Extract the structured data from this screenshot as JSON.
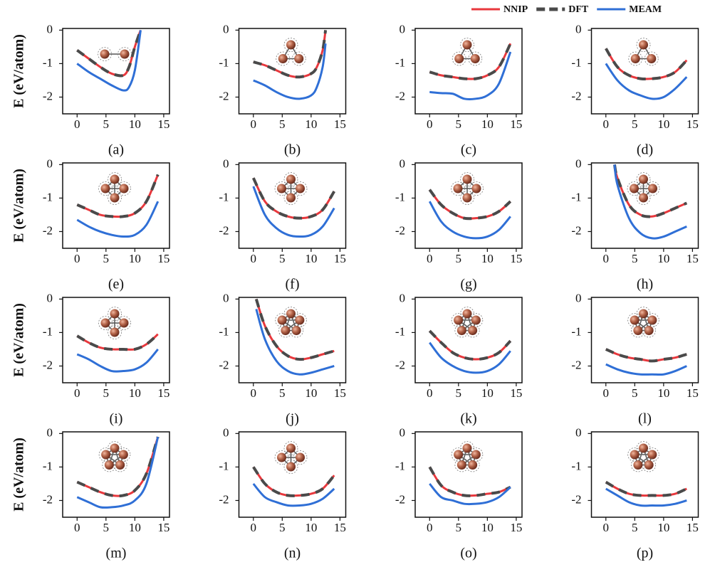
{
  "chart_data": [
    {
      "type": "line",
      "xlabel": "(a)",
      "ylabel": "E (eV/atom)",
      "x": [
        0,
        2,
        4,
        6,
        8,
        9,
        10,
        11
      ],
      "xlim": [
        -2.5,
        16
      ],
      "ylim": [
        -2.5,
        0.05
      ],
      "xticks": [
        0,
        5,
        10,
        15
      ],
      "yticks": [
        0,
        -1,
        -2
      ],
      "series": [
        {
          "color": "#e8383d",
          "values": [
            -0.6,
            -0.85,
            -1.1,
            -1.3,
            -1.35,
            -1.1,
            -0.5,
            0
          ]
        },
        {
          "color": "#4a4a4a",
          "dashed": true,
          "values": [
            -0.6,
            -0.85,
            -1.1,
            -1.3,
            -1.35,
            -1.1,
            -0.5,
            0
          ]
        },
        {
          "color": "#2f6fd6",
          "values": [
            -1.0,
            -1.25,
            -1.45,
            -1.65,
            -1.8,
            -1.7,
            -1.2,
            0
          ]
        }
      ]
    },
    {
      "type": "line",
      "xlabel": "(b)",
      "x": [
        0,
        2,
        4,
        6,
        8,
        10,
        11,
        12,
        12.5
      ],
      "xlim": [
        -2.5,
        16
      ],
      "ylim": [
        -2.5,
        0.05
      ],
      "xticks": [
        0,
        5,
        10,
        15
      ],
      "yticks": [
        0,
        -1,
        -2
      ],
      "series": [
        {
          "color": "#e8383d",
          "values": [
            -0.95,
            -1.05,
            -1.2,
            -1.35,
            -1.4,
            -1.3,
            -1.1,
            -0.6,
            0
          ]
        },
        {
          "color": "#4a4a4a",
          "dashed": true,
          "values": [
            -0.95,
            -1.05,
            -1.2,
            -1.35,
            -1.4,
            -1.3,
            -1.1,
            -0.6,
            0
          ]
        },
        {
          "color": "#2f6fd6",
          "values": [
            -1.5,
            -1.65,
            -1.85,
            -2.0,
            -2.05,
            -1.95,
            -1.7,
            -1.1,
            -0.4
          ]
        }
      ]
    },
    {
      "type": "line",
      "xlabel": "(c)",
      "x": [
        0,
        2,
        4,
        6,
        8,
        10,
        12,
        14
      ],
      "xlim": [
        -2.5,
        16
      ],
      "ylim": [
        -2.5,
        0.05
      ],
      "xticks": [
        0,
        5,
        10,
        15
      ],
      "yticks": [
        0,
        -1,
        -2
      ],
      "series": [
        {
          "color": "#e8383d",
          "values": [
            -1.25,
            -1.35,
            -1.4,
            -1.45,
            -1.45,
            -1.35,
            -1.1,
            -0.4
          ]
        },
        {
          "color": "#4a4a4a",
          "dashed": true,
          "values": [
            -1.25,
            -1.35,
            -1.4,
            -1.45,
            -1.45,
            -1.35,
            -1.1,
            -0.4
          ]
        },
        {
          "color": "#2f6fd6",
          "values": [
            -1.85,
            -1.88,
            -1.9,
            -2.05,
            -2.05,
            -1.95,
            -1.6,
            -0.65
          ]
        }
      ]
    },
    {
      "type": "line",
      "xlabel": "(d)",
      "x": [
        0,
        2,
        4,
        6,
        8,
        10,
        12,
        14
      ],
      "xlim": [
        -2.5,
        16
      ],
      "ylim": [
        -2.5,
        0.05
      ],
      "xticks": [
        0,
        5,
        10,
        15
      ],
      "yticks": [
        0,
        -1,
        -2
      ],
      "series": [
        {
          "name": "NNIP",
          "color": "#e8383d",
          "values": [
            -0.55,
            -1.1,
            -1.35,
            -1.45,
            -1.45,
            -1.4,
            -1.25,
            -0.9
          ]
        },
        {
          "name": "DFT",
          "color": "#4a4a4a",
          "dashed": true,
          "values": [
            -0.55,
            -1.1,
            -1.35,
            -1.45,
            -1.45,
            -1.4,
            -1.25,
            -0.9
          ]
        },
        {
          "name": "MEAM",
          "color": "#2f6fd6",
          "values": [
            -1.0,
            -1.5,
            -1.8,
            -1.95,
            -2.05,
            -2.0,
            -1.75,
            -1.4
          ]
        }
      ]
    },
    {
      "type": "line",
      "xlabel": "(e)",
      "ylabel": "E (eV/atom)",
      "x": [
        0,
        2,
        4,
        6,
        8,
        10,
        12,
        14
      ],
      "xlim": [
        -2.5,
        16
      ],
      "ylim": [
        -2.5,
        0.05
      ],
      "xticks": [
        0,
        5,
        10,
        15
      ],
      "yticks": [
        0,
        -1,
        -2
      ],
      "series": [
        {
          "color": "#e8383d",
          "values": [
            -1.2,
            -1.35,
            -1.5,
            -1.55,
            -1.55,
            -1.45,
            -1.1,
            -0.3
          ]
        },
        {
          "color": "#4a4a4a",
          "dashed": true,
          "values": [
            -1.2,
            -1.35,
            -1.5,
            -1.55,
            -1.55,
            -1.45,
            -1.1,
            -0.3
          ]
        },
        {
          "color": "#2f6fd6",
          "values": [
            -1.65,
            -1.85,
            -2.0,
            -2.1,
            -2.15,
            -2.1,
            -1.8,
            -1.1
          ]
        }
      ]
    },
    {
      "type": "line",
      "xlabel": "(f)",
      "x": [
        0,
        2,
        4,
        6,
        8,
        10,
        12,
        14
      ],
      "xlim": [
        -2.5,
        16
      ],
      "ylim": [
        -2.5,
        0.05
      ],
      "xticks": [
        0,
        5,
        10,
        15
      ],
      "yticks": [
        0,
        -1,
        -2
      ],
      "series": [
        {
          "color": "#e8383d",
          "values": [
            -0.4,
            -1.1,
            -1.4,
            -1.55,
            -1.6,
            -1.55,
            -1.35,
            -0.8
          ]
        },
        {
          "color": "#4a4a4a",
          "dashed": true,
          "values": [
            -0.4,
            -1.1,
            -1.4,
            -1.55,
            -1.6,
            -1.55,
            -1.35,
            -0.8
          ]
        },
        {
          "color": "#2f6fd6",
          "values": [
            -0.65,
            -1.5,
            -1.9,
            -2.1,
            -2.15,
            -2.1,
            -1.85,
            -1.3
          ]
        }
      ]
    },
    {
      "type": "line",
      "xlabel": "(g)",
      "x": [
        0,
        2,
        4,
        6,
        8,
        10,
        12,
        14
      ],
      "xlim": [
        -2.5,
        16
      ],
      "ylim": [
        -2.5,
        0.05
      ],
      "xticks": [
        0,
        5,
        10,
        15
      ],
      "yticks": [
        0,
        -1,
        -2
      ],
      "series": [
        {
          "color": "#e8383d",
          "values": [
            -0.75,
            -1.2,
            -1.45,
            -1.6,
            -1.6,
            -1.55,
            -1.4,
            -1.1
          ]
        },
        {
          "color": "#4a4a4a",
          "dashed": true,
          "values": [
            -0.75,
            -1.2,
            -1.45,
            -1.6,
            -1.6,
            -1.55,
            -1.4,
            -1.1
          ]
        },
        {
          "color": "#2f6fd6",
          "values": [
            -1.1,
            -1.7,
            -2.0,
            -2.15,
            -2.2,
            -2.15,
            -1.95,
            -1.55
          ]
        }
      ]
    },
    {
      "type": "line",
      "xlabel": "(h)",
      "x": [
        1.5,
        2,
        4,
        6,
        8,
        10,
        12,
        14
      ],
      "xlim": [
        -2.5,
        16
      ],
      "ylim": [
        -2.5,
        0.05
      ],
      "xticks": [
        0,
        5,
        10,
        15
      ],
      "yticks": [
        0,
        -1,
        -2
      ],
      "series": [
        {
          "color": "#e8383d",
          "values": [
            0,
            -0.4,
            -1.2,
            -1.5,
            -1.55,
            -1.45,
            -1.3,
            -1.15
          ]
        },
        {
          "color": "#4a4a4a",
          "dashed": true,
          "values": [
            0,
            -0.4,
            -1.2,
            -1.5,
            -1.55,
            -1.45,
            -1.3,
            -1.15
          ]
        },
        {
          "color": "#2f6fd6",
          "values": [
            0,
            -0.6,
            -1.6,
            -2.05,
            -2.2,
            -2.15,
            -2.0,
            -1.85
          ]
        }
      ]
    },
    {
      "type": "line",
      "xlabel": "(i)",
      "ylabel": "E (eV/atom)",
      "x": [
        0,
        2,
        4,
        6,
        8,
        10,
        12,
        14
      ],
      "xlim": [
        -2.5,
        16
      ],
      "ylim": [
        -2.5,
        0.05
      ],
      "xticks": [
        0,
        5,
        10,
        15
      ],
      "yticks": [
        0,
        -1,
        -2
      ],
      "series": [
        {
          "color": "#e8383d",
          "values": [
            -1.1,
            -1.3,
            -1.45,
            -1.5,
            -1.5,
            -1.5,
            -1.35,
            -1.05
          ]
        },
        {
          "color": "#4a4a4a",
          "dashed": true,
          "values": [
            -1.1,
            -1.3,
            -1.45,
            -1.5,
            -1.5,
            -1.5,
            -1.35,
            -1.05
          ]
        },
        {
          "color": "#2f6fd6",
          "values": [
            -1.65,
            -1.8,
            -2.0,
            -2.15,
            -2.15,
            -2.1,
            -1.9,
            -1.5
          ]
        }
      ]
    },
    {
      "type": "line",
      "xlabel": "(j)",
      "x": [
        0.5,
        2,
        4,
        6,
        8,
        10,
        12,
        14
      ],
      "xlim": [
        -2.5,
        16
      ],
      "ylim": [
        -2.5,
        0.05
      ],
      "xticks": [
        0,
        5,
        10,
        15
      ],
      "yticks": [
        0,
        -1,
        -2
      ],
      "series": [
        {
          "color": "#e8383d",
          "values": [
            0,
            -0.8,
            -1.4,
            -1.7,
            -1.8,
            -1.75,
            -1.65,
            -1.55
          ]
        },
        {
          "color": "#4a4a4a",
          "dashed": true,
          "values": [
            0,
            -0.8,
            -1.4,
            -1.7,
            -1.8,
            -1.75,
            -1.65,
            -1.55
          ]
        },
        {
          "color": "#2f6fd6",
          "values": [
            -0.3,
            -1.2,
            -1.85,
            -2.15,
            -2.25,
            -2.2,
            -2.1,
            -2.0
          ]
        }
      ]
    },
    {
      "type": "line",
      "xlabel": "(k)",
      "x": [
        0,
        2,
        4,
        6,
        8,
        10,
        12,
        14
      ],
      "xlim": [
        -2.5,
        16
      ],
      "ylim": [
        -2.5,
        0.05
      ],
      "xticks": [
        0,
        5,
        10,
        15
      ],
      "yticks": [
        0,
        -1,
        -2
      ],
      "series": [
        {
          "color": "#e8383d",
          "values": [
            -0.95,
            -1.3,
            -1.6,
            -1.75,
            -1.8,
            -1.75,
            -1.6,
            -1.25
          ]
        },
        {
          "color": "#4a4a4a",
          "dashed": true,
          "values": [
            -0.95,
            -1.3,
            -1.6,
            -1.75,
            -1.8,
            -1.75,
            -1.6,
            -1.25
          ]
        },
        {
          "color": "#2f6fd6",
          "values": [
            -1.3,
            -1.75,
            -2.0,
            -2.15,
            -2.2,
            -2.15,
            -1.95,
            -1.55
          ]
        }
      ]
    },
    {
      "type": "line",
      "xlabel": "(l)",
      "x": [
        0,
        2,
        4,
        6,
        8,
        10,
        12,
        14
      ],
      "xlim": [
        -2.5,
        16
      ],
      "ylim": [
        -2.5,
        0.05
      ],
      "xticks": [
        0,
        5,
        10,
        15
      ],
      "yticks": [
        0,
        -1,
        -2
      ],
      "series": [
        {
          "color": "#e8383d",
          "values": [
            -1.5,
            -1.65,
            -1.75,
            -1.8,
            -1.85,
            -1.8,
            -1.75,
            -1.65
          ]
        },
        {
          "color": "#4a4a4a",
          "dashed": true,
          "values": [
            -1.5,
            -1.65,
            -1.75,
            -1.8,
            -1.85,
            -1.8,
            -1.75,
            -1.65
          ]
        },
        {
          "color": "#2f6fd6",
          "values": [
            -1.95,
            -2.1,
            -2.2,
            -2.25,
            -2.25,
            -2.25,
            -2.15,
            -2.0
          ]
        }
      ]
    },
    {
      "type": "line",
      "xlabel": "(m)",
      "ylabel": "E (eV/atom)",
      "x": [
        0,
        2,
        4,
        6,
        8,
        10,
        12,
        14
      ],
      "xlim": [
        -2.5,
        16
      ],
      "ylim": [
        -2.5,
        0.05
      ],
      "xticks": [
        0,
        5,
        10,
        15
      ],
      "yticks": [
        0,
        -1,
        -2
      ],
      "series": [
        {
          "color": "#e8383d",
          "values": [
            -1.45,
            -1.6,
            -1.75,
            -1.85,
            -1.85,
            -1.7,
            -1.2,
            -0.1
          ]
        },
        {
          "color": "#4a4a4a",
          "dashed": true,
          "values": [
            -1.45,
            -1.6,
            -1.75,
            -1.85,
            -1.85,
            -1.7,
            -1.2,
            -0.1
          ]
        },
        {
          "color": "#2f6fd6",
          "values": [
            -1.9,
            -2.05,
            -2.2,
            -2.2,
            -2.15,
            -2.0,
            -1.5,
            -0.1
          ]
        }
      ]
    },
    {
      "type": "line",
      "xlabel": "(n)",
      "x": [
        0,
        2,
        4,
        6,
        8,
        10,
        12,
        14
      ],
      "xlim": [
        -2.5,
        16
      ],
      "ylim": [
        -2.5,
        0.05
      ],
      "xticks": [
        0,
        5,
        10,
        15
      ],
      "yticks": [
        0,
        -1,
        -2
      ],
      "series": [
        {
          "color": "#e8383d",
          "values": [
            -1.0,
            -1.5,
            -1.75,
            -1.85,
            -1.85,
            -1.8,
            -1.65,
            -1.25
          ]
        },
        {
          "color": "#4a4a4a",
          "dashed": true,
          "values": [
            -1.0,
            -1.5,
            -1.75,
            -1.85,
            -1.85,
            -1.8,
            -1.65,
            -1.25
          ]
        },
        {
          "color": "#2f6fd6",
          "values": [
            -1.5,
            -1.9,
            -2.05,
            -2.15,
            -2.15,
            -2.1,
            -1.95,
            -1.65
          ]
        }
      ]
    },
    {
      "type": "line",
      "xlabel": "(o)",
      "x": [
        0,
        2,
        4,
        6,
        8,
        10,
        12,
        14
      ],
      "xlim": [
        -2.5,
        16
      ],
      "ylim": [
        -2.5,
        0.05
      ],
      "xticks": [
        0,
        5,
        10,
        15
      ],
      "yticks": [
        0,
        -1,
        -2
      ],
      "series": [
        {
          "color": "#e8383d",
          "values": [
            -1.0,
            -1.55,
            -1.75,
            -1.85,
            -1.85,
            -1.8,
            -1.75,
            -1.6
          ]
        },
        {
          "color": "#4a4a4a",
          "dashed": true,
          "values": [
            -1.0,
            -1.55,
            -1.75,
            -1.85,
            -1.85,
            -1.8,
            -1.75,
            -1.6
          ]
        },
        {
          "color": "#2f6fd6",
          "values": [
            -1.5,
            -1.9,
            -2.0,
            -2.1,
            -2.1,
            -2.05,
            -1.9,
            -1.6
          ]
        }
      ]
    },
    {
      "type": "line",
      "xlabel": "(p)",
      "x": [
        0,
        2,
        4,
        6,
        8,
        10,
        12,
        14
      ],
      "xlim": [
        -2.5,
        16
      ],
      "ylim": [
        -2.5,
        0.05
      ],
      "xticks": [
        0,
        5,
        10,
        15
      ],
      "yticks": [
        0,
        -1,
        -2
      ],
      "series": [
        {
          "color": "#e8383d",
          "values": [
            -1.45,
            -1.65,
            -1.8,
            -1.85,
            -1.85,
            -1.85,
            -1.8,
            -1.65
          ]
        },
        {
          "color": "#4a4a4a",
          "dashed": true,
          "values": [
            -1.45,
            -1.65,
            -1.8,
            -1.85,
            -1.85,
            -1.85,
            -1.8,
            -1.65
          ]
        },
        {
          "color": "#2f6fd6",
          "values": [
            -1.65,
            -1.85,
            -2.05,
            -2.15,
            -2.15,
            -2.15,
            -2.1,
            -2.0
          ]
        }
      ]
    }
  ]
}
